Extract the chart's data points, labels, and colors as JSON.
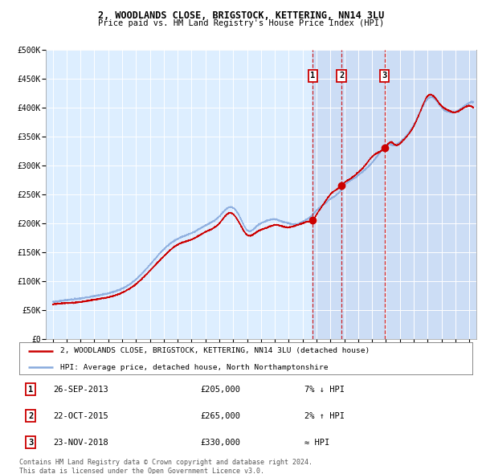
{
  "title1": "2, WOODLANDS CLOSE, BRIGSTOCK, KETTERING, NN14 3LU",
  "title2": "Price paid vs. HM Land Registry's House Price Index (HPI)",
  "ylabel_ticks": [
    "£0",
    "£50K",
    "£100K",
    "£150K",
    "£200K",
    "£250K",
    "£300K",
    "£350K",
    "£400K",
    "£450K",
    "£500K"
  ],
  "ytick_vals": [
    0,
    50000,
    100000,
    150000,
    200000,
    250000,
    300000,
    350000,
    400000,
    450000,
    500000
  ],
  "xlim": [
    1994.5,
    2025.5
  ],
  "ylim": [
    0,
    500000
  ],
  "transactions": [
    {
      "num": 1,
      "date": "26-SEP-2013",
      "price": 205000,
      "rel": "7% ↓ HPI",
      "year": 2013.73
    },
    {
      "num": 2,
      "date": "22-OCT-2015",
      "price": 265000,
      "rel": "2% ↑ HPI",
      "year": 2015.8
    },
    {
      "num": 3,
      "date": "23-NOV-2018",
      "price": 330000,
      "rel": "≈ HPI",
      "year": 2018.89
    }
  ],
  "legend_line1": "2, WOODLANDS CLOSE, BRIGSTOCK, KETTERING, NN14 3LU (detached house)",
  "legend_line2": "HPI: Average price, detached house, North Northamptonshire",
  "footer": "Contains HM Land Registry data © Crown copyright and database right 2024.\nThis data is licensed under the Open Government Licence v3.0.",
  "red_color": "#cc0000",
  "blue_color": "#88aadd",
  "bg_color": "#ddeeff",
  "grid_color": "#ffffff",
  "box_bg": "#ffffff",
  "shade_color": "#ccddf5"
}
